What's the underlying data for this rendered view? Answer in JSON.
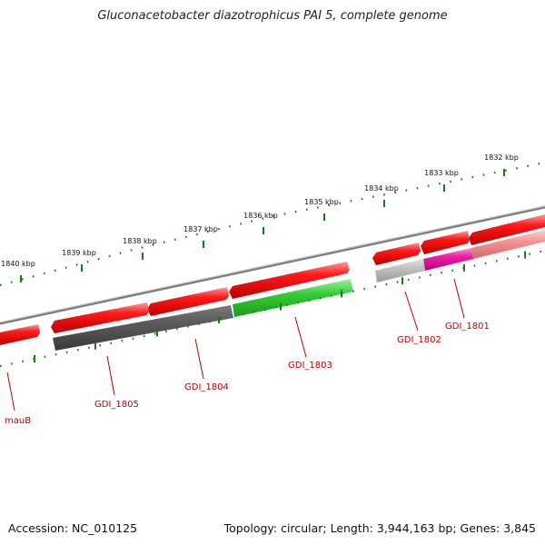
{
  "title": "Gluconacetobacter diazotrophicus PAI 5, complete genome",
  "footer": {
    "accession": "Accession: NC_010125",
    "summary": "Topology: circular; Length: 3,944,163 bp; Genes: 3,845"
  },
  "colors": {
    "gene_forward": "#e80000",
    "gene_forward_light": "#f28080",
    "cds_dark": "#555555",
    "cds_green": "#2ec02e",
    "cds_light_gray": "#b8b8b8",
    "cds_magenta": "#e0109a",
    "backbone": "#888888",
    "ticks": "#1a7a1a",
    "label": "#c00000"
  },
  "kbp_labels": [
    {
      "text": "1832 kbp",
      "pos_kbp": 1832
    },
    {
      "text": "1833 kbp",
      "pos_kbp": 1833
    },
    {
      "text": "1834 kbp",
      "pos_kbp": 1834
    },
    {
      "text": "1835 kbp",
      "pos_kbp": 1835
    },
    {
      "text": "1836 kbp",
      "pos_kbp": 1836
    },
    {
      "text": "1837 kbp",
      "pos_kbp": 1837
    },
    {
      "text": "1838 kbp",
      "pos_kbp": 1838
    },
    {
      "text": "1839 kbp",
      "pos_kbp": 1839
    },
    {
      "text": "1840 kbp",
      "pos_kbp": 1840
    }
  ],
  "genes": [
    {
      "name": "GDI_1801"
    },
    {
      "name": "GDI_1802"
    },
    {
      "name": "GDI_1803"
    },
    {
      "name": "GDI_1804"
    },
    {
      "name": "GDI_1805"
    },
    {
      "name": "mauB"
    }
  ]
}
